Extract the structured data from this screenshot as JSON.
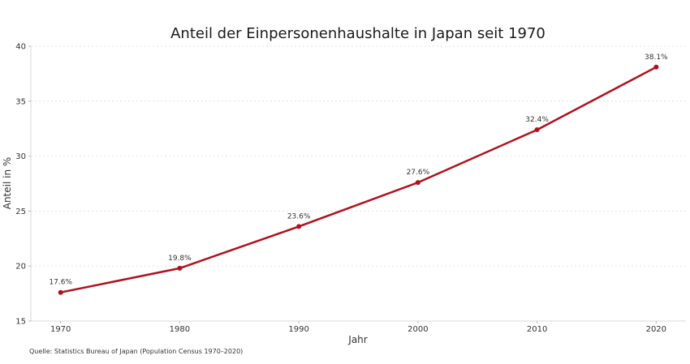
{
  "chart_data": {
    "type": "line",
    "title": "Anteil der Einpersonenhaushalte in Japan seit 1970",
    "xlabel": "Jahr",
    "ylabel": "Anteil in %",
    "x": [
      1970,
      1980,
      1990,
      2000,
      2010,
      2020
    ],
    "series": [
      {
        "name": "Anteil der Einpersonenhaushalte",
        "values": [
          17.6,
          19.8,
          23.6,
          27.6,
          32.4,
          38.1
        ],
        "labels": [
          "17.6%",
          "19.8%",
          "23.6%",
          "27.6%",
          "32.4%",
          "38.1%"
        ],
        "color": "#b0101c"
      }
    ],
    "xticks": [
      "1970",
      "1980",
      "1990",
      "2000",
      "2010",
      "2020"
    ],
    "yticks": [
      "15",
      "20",
      "25",
      "30",
      "35",
      "40"
    ],
    "ytick_values": [
      15,
      20,
      25,
      30,
      35,
      40
    ],
    "xlim": [
      1967.5,
      2022.5
    ],
    "ylim": [
      15,
      40
    ],
    "grid": "horizontal-dotted",
    "source": "Quelle: Statistics Bureau of Japan (Population Census 1970–2020)"
  }
}
